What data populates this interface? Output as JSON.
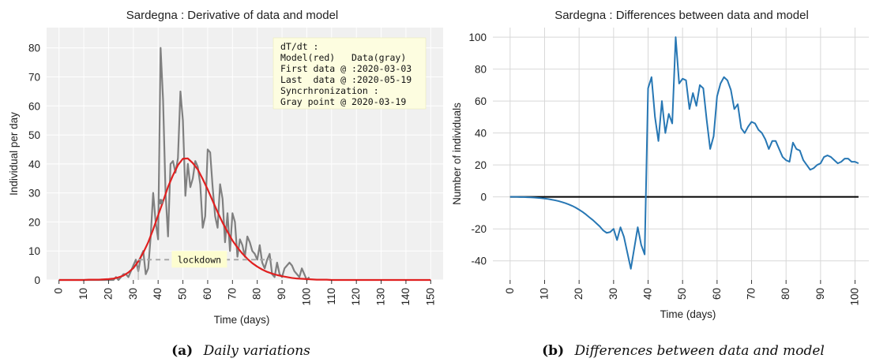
{
  "chart_data": [
    {
      "type": "line",
      "title": "Sardegna : Derivative of data and model",
      "xlabel": "Time (days)",
      "ylabel": "Individual per day",
      "xlim": [
        -5,
        155
      ],
      "ylim": [
        0,
        87
      ],
      "x_ticks": [
        0,
        10,
        20,
        30,
        40,
        50,
        60,
        70,
        80,
        90,
        100,
        110,
        120,
        130,
        140,
        150
      ],
      "y_ticks": [
        0,
        10,
        20,
        30,
        40,
        50,
        60,
        70,
        80
      ],
      "grid": true,
      "background": "#f0f0f0",
      "series": [
        {
          "name": "Data(gray)",
          "color": "#808080",
          "x": [
            0,
            1,
            2,
            3,
            4,
            5,
            6,
            7,
            8,
            9,
            10,
            11,
            12,
            13,
            14,
            15,
            16,
            17,
            18,
            19,
            20,
            21,
            22,
            23,
            24,
            25,
            26,
            27,
            28,
            29,
            30,
            31,
            32,
            33,
            34,
            35,
            36,
            37,
            38,
            39,
            40,
            41,
            42,
            43,
            44,
            45,
            46,
            47,
            48,
            49,
            50,
            51,
            52,
            53,
            54,
            55,
            56,
            57,
            58,
            59,
            60,
            61,
            62,
            63,
            64,
            65,
            66,
            67,
            68,
            69,
            70,
            71,
            72,
            73,
            74,
            75,
            76,
            77,
            78,
            79,
            80,
            81,
            82,
            83,
            84,
            85,
            86,
            87,
            88,
            89,
            90,
            91,
            92,
            93,
            94,
            95,
            96,
            97,
            98,
            99,
            100,
            101
          ],
          "y": [
            0,
            0,
            0,
            0,
            0,
            0,
            0,
            0,
            0,
            0,
            0,
            0,
            0,
            0,
            0,
            0,
            0,
            0,
            0,
            0,
            0,
            0,
            0,
            1,
            0,
            1,
            2,
            2,
            1,
            3,
            5,
            7,
            3,
            8,
            10,
            2,
            4,
            15,
            30,
            20,
            14,
            80,
            62,
            30,
            15,
            40,
            41,
            37,
            42,
            65,
            55,
            29,
            40,
            32,
            35,
            41,
            39,
            33,
            18,
            22,
            45,
            44,
            32,
            22,
            18,
            33,
            28,
            13,
            23,
            10,
            23,
            20,
            8,
            14,
            12,
            8,
            15,
            13,
            10,
            9,
            7,
            12,
            6,
            4,
            7,
            9,
            2,
            1,
            6,
            2,
            1,
            4,
            5,
            6,
            5,
            3,
            2,
            1,
            4,
            2,
            0,
            1
          ]
        },
        {
          "name": "Model(red)",
          "color": "#e02020",
          "x": [
            0,
            2,
            4,
            6,
            8,
            10,
            12,
            14,
            16,
            18,
            20,
            22,
            24,
            26,
            28,
            30,
            32,
            34,
            36,
            38,
            40,
            42,
            44,
            46,
            48,
            50,
            52,
            54,
            56,
            58,
            60,
            62,
            64,
            66,
            68,
            70,
            72,
            74,
            76,
            78,
            80,
            82,
            84,
            86,
            88,
            90,
            92,
            94,
            96,
            98,
            100,
            102,
            104,
            106,
            108,
            110,
            112,
            114,
            116,
            118,
            120,
            122,
            124,
            126,
            128,
            130,
            132,
            134,
            136,
            138,
            140,
            142,
            144,
            146,
            148,
            150
          ],
          "y": [
            0.0,
            0.0,
            0.0,
            0.0,
            0.0,
            0.0,
            0.1,
            0.1,
            0.1,
            0.2,
            0.3,
            0.5,
            0.9,
            1.5,
            2.6,
            4.1,
            6.4,
            9.4,
            13.0,
            17.4,
            22.3,
            27.1,
            32.1,
            36.1,
            39.6,
            41.8,
            41.9,
            40.3,
            38.1,
            34.8,
            31.2,
            27.3,
            23.4,
            19.8,
            16.6,
            13.6,
            11.2,
            9.1,
            7.3,
            5.8,
            4.6,
            3.6,
            2.8,
            2.2,
            1.7,
            1.3,
            1.0,
            0.7,
            0.5,
            0.4,
            0.3,
            0.2,
            0.1,
            0.1,
            0.1,
            0.0,
            0.0,
            0.0,
            0.0,
            0.0,
            0.0,
            0.0,
            0.0,
            0.0,
            0.0,
            0.0,
            0.0,
            0.0,
            0.0,
            0.0,
            0.0,
            0.0,
            0.0,
            0.0,
            0.0,
            0.0
          ]
        }
      ],
      "annotations": {
        "legend_lines": [
          "dT/dt :",
          "Model(red)   Data(gray)",
          "First data @ :2020-03-03",
          "Last  data @ :2020-05-19",
          "Syncrhronization :",
          "Gray point @ 2020-03-19"
        ],
        "legend_placement": "top-right",
        "sync_point": {
          "x": 41,
          "y": 27
        },
        "lockdown": {
          "label": "lockdown",
          "x_start": 32,
          "x_end": 86,
          "y": 7
        },
        "vertical_marker_x": 32
      }
    },
    {
      "type": "line",
      "title": "Sardegna : Differences between data and model",
      "xlabel": "Time (days)",
      "ylabel": "Number of individuals",
      "xlim": [
        -5,
        104
      ],
      "ylim": [
        -52,
        106
      ],
      "x_ticks": [
        0,
        10,
        20,
        30,
        40,
        50,
        60,
        70,
        80,
        90,
        100
      ],
      "y_ticks": [
        -40,
        -20,
        0,
        20,
        40,
        60,
        80,
        100
      ],
      "grid": true,
      "background": "#ffffff",
      "zero_line": {
        "y": 0,
        "x_start": 0,
        "x_end": 101,
        "color": "#000000"
      },
      "series": [
        {
          "name": "",
          "color": "#2777b4",
          "x": [
            0,
            1,
            2,
            3,
            4,
            5,
            6,
            7,
            8,
            9,
            10,
            11,
            12,
            13,
            14,
            15,
            16,
            17,
            18,
            19,
            20,
            21,
            22,
            23,
            24,
            25,
            26,
            27,
            28,
            29,
            30,
            31,
            32,
            33,
            34,
            35,
            36,
            37,
            38,
            39,
            40,
            41,
            42,
            43,
            44,
            45,
            46,
            47,
            48,
            49,
            50,
            51,
            52,
            53,
            54,
            55,
            56,
            57,
            58,
            59,
            60,
            61,
            62,
            63,
            64,
            65,
            66,
            67,
            68,
            69,
            70,
            71,
            72,
            73,
            74,
            75,
            76,
            77,
            78,
            79,
            80,
            81,
            82,
            83,
            84,
            85,
            86,
            87,
            88,
            89,
            90,
            91,
            92,
            93,
            94,
            95,
            96,
            97,
            98,
            99,
            100,
            101
          ],
          "y": [
            0,
            0,
            0,
            -0.1,
            -0.1,
            -0.2,
            -0.3,
            -0.4,
            -0.6,
            -0.8,
            -1,
            -1.3,
            -1.7,
            -2.1,
            -2.6,
            -3.2,
            -3.9,
            -4.7,
            -5.6,
            -6.7,
            -8,
            -9.4,
            -11,
            -12.8,
            -14.5,
            -16.5,
            -18.5,
            -21,
            -22.5,
            -22,
            -20,
            -27,
            -19,
            -25,
            -35,
            -45,
            -32,
            -19,
            -30,
            -36,
            68,
            75,
            50,
            35,
            60,
            40,
            52,
            46,
            100,
            71,
            74,
            73,
            55,
            65,
            57,
            70,
            68,
            48,
            30,
            38,
            63,
            71,
            75,
            73,
            67,
            55,
            58,
            43,
            40,
            44,
            47,
            46,
            42,
            40,
            36,
            30,
            35,
            35,
            30,
            25,
            23,
            22,
            34,
            30,
            29,
            23,
            20,
            17,
            18,
            20,
            21,
            25,
            26,
            25,
            23,
            21,
            22,
            24,
            24,
            22,
            22,
            21
          ]
        }
      ]
    }
  ],
  "captions": [
    {
      "letter": "(a)",
      "text": "Daily variations"
    },
    {
      "letter": "(b)",
      "text": "Differences between data and model"
    }
  ]
}
